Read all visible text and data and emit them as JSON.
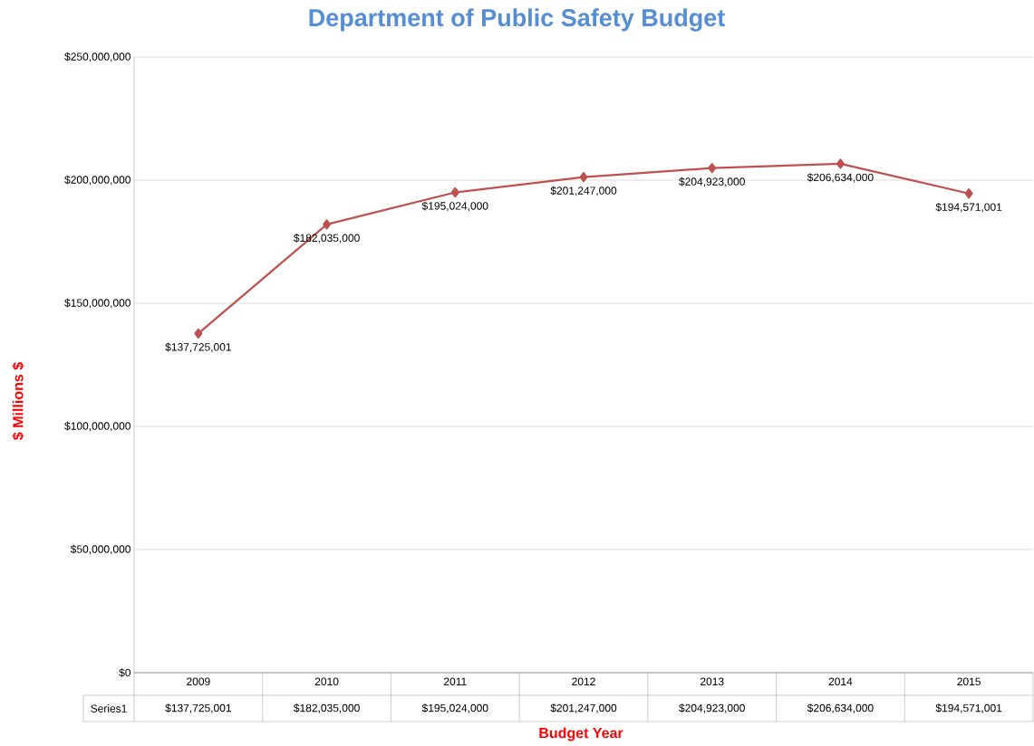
{
  "chart_data": {
    "type": "line",
    "title": "Department of Public Safety Budget",
    "xlabel": "Budget Year",
    "ylabel": "$ Millions $",
    "categories": [
      "2009",
      "2010",
      "2011",
      "2012",
      "2013",
      "2014",
      "2015"
    ],
    "series": [
      {
        "name": "Series1",
        "color": "#c0504d",
        "values": [
          137725001,
          182035000,
          195024000,
          201247000,
          204923000,
          206634000,
          194571001
        ],
        "value_labels": [
          "$137,725,001",
          "$182,035,000",
          "$195,024,000",
          "$201,247,000",
          "$204,923,000",
          "$206,634,000",
          "$194,571,001"
        ]
      }
    ],
    "ylim": [
      0,
      250000000
    ],
    "yticks": [
      {
        "value": 0,
        "label": "$0"
      },
      {
        "value": 50000000,
        "label": "$50,000,000"
      },
      {
        "value": 100000000,
        "label": "$100,000,000"
      },
      {
        "value": 150000000,
        "label": "$150,000,000"
      },
      {
        "value": 200000000,
        "label": "$200,000,000"
      },
      {
        "value": 250000000,
        "label": "$250,000,000"
      }
    ],
    "grid": "y",
    "marker": "diamond",
    "line_style": "solid"
  }
}
